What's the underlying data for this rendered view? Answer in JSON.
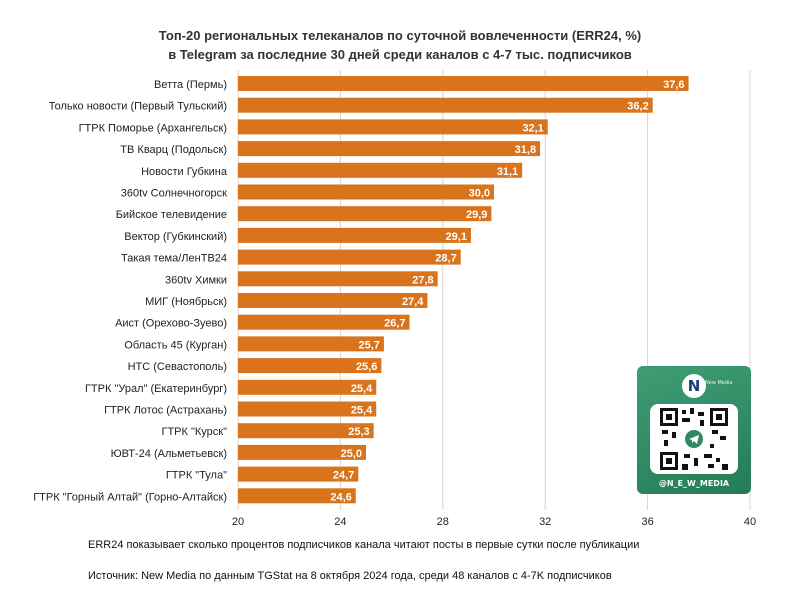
{
  "title_lines": [
    "Топ-20 региональных телеканалов по суточной вовлеченности (ERR24, %)",
    "в Telegram за последние 30 дней среди каналов с 4-7 тыс. подписчиков"
  ],
  "footnote": "ERR24 показывает сколько процентов подписчиков канала читают посты в первые сутки после публикации",
  "source": "Источник: New Media по данным TGStat на 8 октября 2024 года, среди 48 каналов с 4-7K подписчиков",
  "qr": {
    "logo_letter": "N",
    "logo_text": "New Media",
    "handle": "@N_E_W_MEDIA"
  },
  "colors": {
    "bar": "#D9731C",
    "grid": "#d4d4d4",
    "label_text": "#ffffff",
    "qr_green": "#2f8a63"
  },
  "chart_data": {
    "type": "bar",
    "orientation": "horizontal",
    "title": "Топ-20 региональных телеканалов по суточной вовлеченности (ERR24, %) в Telegram за последние 30 дней среди каналов с 4-7 тыс. подписчиков",
    "xlim": [
      20,
      40
    ],
    "xticks": [
      20,
      24,
      28,
      32,
      36,
      40
    ],
    "grid": true,
    "categories": [
      "Ветта (Пермь)",
      "Только новости (Первый Тульский)",
      "ГТРК Поморье (Архангельск)",
      "ТВ Кварц (Подольск)",
      "Новости Губкина",
      "360tv Солнечногорск",
      "Бийское телевидение",
      "Вектор (Губкинский)",
      "Такая тема/ЛенТВ24",
      "360tv Химки",
      "МИГ (Ноябрьск)",
      "Аист (Орехово-Зуево)",
      "Область 45 (Курган)",
      "НТС (Севастополь)",
      "ГТРК \"Урал\" (Екатеринбург)",
      "ГТРК Лотос (Астрахань)",
      "ГТРК \"Курск\"",
      "ЮВТ-24 (Альметьевск)",
      "ГТРК \"Тула\"",
      "ГТРК \"Горный Алтай\" (Горно-Алтайск)"
    ],
    "values": [
      37.6,
      36.2,
      32.1,
      31.8,
      31.1,
      30.0,
      29.9,
      29.1,
      28.7,
      27.8,
      27.4,
      26.7,
      25.7,
      25.6,
      25.4,
      25.4,
      25.3,
      25.0,
      24.7,
      24.6
    ],
    "value_labels": [
      "37,6",
      "36,2",
      "32,1",
      "31,8",
      "31,1",
      "30,0",
      "29,9",
      "29,1",
      "28,7",
      "27,8",
      "27,4",
      "26,7",
      "25,7",
      "25,6",
      "25,4",
      "25,4",
      "25,3",
      "25,0",
      "24,7",
      "24,6"
    ]
  }
}
